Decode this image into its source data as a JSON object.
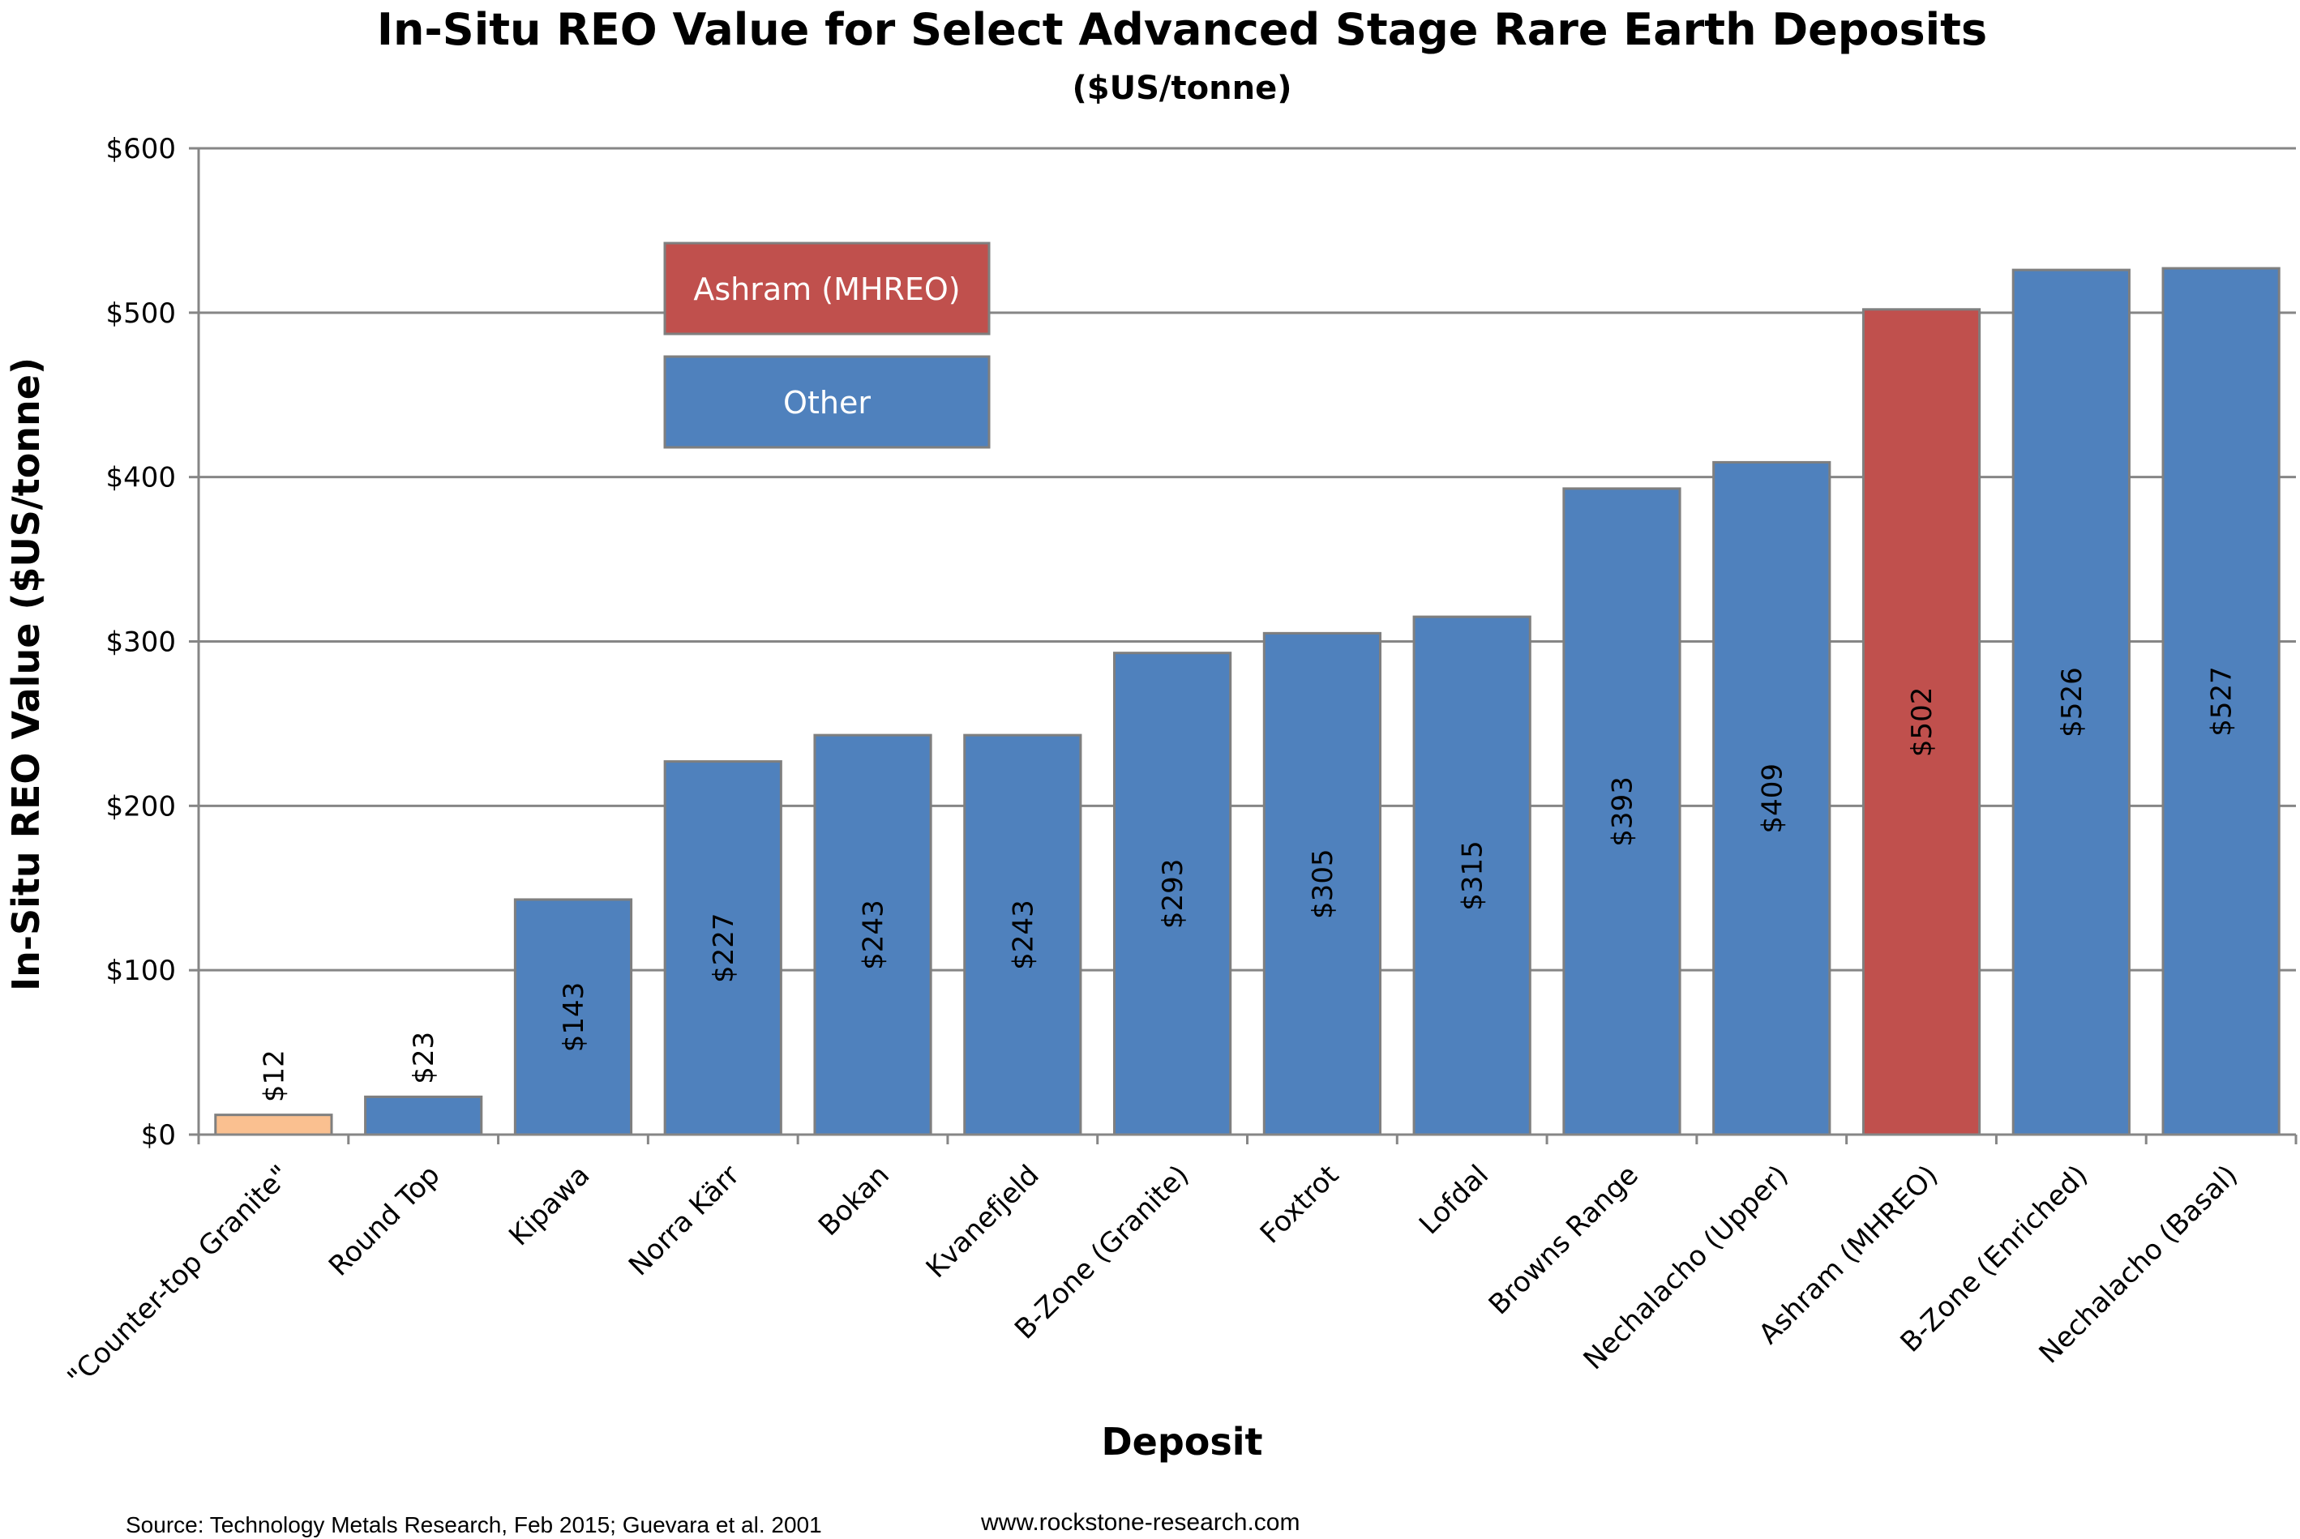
{
  "chart_data": {
    "type": "bar",
    "title": "In-Situ REO Value for Select Advanced Stage Rare Earth Deposits",
    "subtitle": "($US/tonne)",
    "xlabel": "Deposit",
    "ylabel": "In-Situ REO Value ($US/tonne)",
    "ylim": [
      0,
      600
    ],
    "yticks": [
      0,
      100,
      200,
      300,
      400,
      500,
      600
    ],
    "ytick_labels": [
      "$0",
      "$100",
      "$200",
      "$300",
      "$400",
      "$500",
      "$600"
    ],
    "grid": true,
    "categories": [
      "\"Counter-top Granite\"",
      "Round Top",
      "Kipawa",
      "Norra Kärr",
      "Bokan",
      "Kvanefjeld",
      "B-Zone (Granite)",
      "Foxtrot",
      "Lofdal",
      "Browns Range",
      "Nechalacho (Upper)",
      "Ashram (MHREO)",
      "B-Zone (Enriched)",
      "Nechalacho (Basal)"
    ],
    "values": [
      12,
      23,
      143,
      227,
      243,
      243,
      293,
      305,
      315,
      393,
      409,
      502,
      526,
      527
    ],
    "data_labels": [
      "$12",
      "$23",
      "$143",
      "$227",
      "$243",
      "$243",
      "$293",
      "$305",
      "$315",
      "$393",
      "$409",
      "$502",
      "$526",
      "$527"
    ],
    "bar_groups": [
      "granite",
      "other",
      "other",
      "other",
      "other",
      "other",
      "other",
      "other",
      "other",
      "other",
      "other",
      "ashram",
      "other",
      "other"
    ],
    "colors": {
      "other": "#4f81bd",
      "ashram": "#c0504d",
      "granite": "#fac090",
      "grid": "#868686",
      "bar_edge": "#7f7f7f"
    },
    "legend": {
      "placement": "top-left",
      "entries": [
        {
          "label": "Ashram (MHREO)",
          "group": "ashram"
        },
        {
          "label": "Other",
          "group": "other"
        }
      ]
    }
  },
  "footer": {
    "source": "Source: Technology Metals Research, Feb 2015; Guevara et al. 2001",
    "website": "www.rockstone-research.com"
  }
}
